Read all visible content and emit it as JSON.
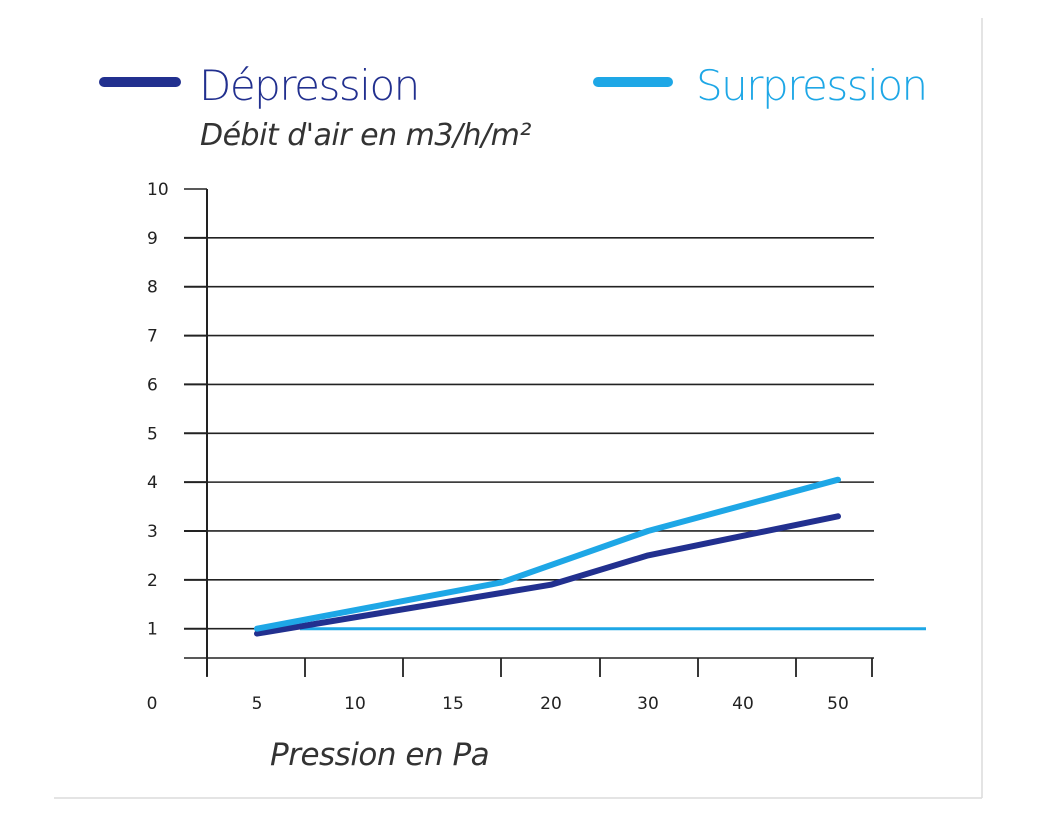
{
  "chart_data": {
    "type": "line",
    "ylabel": "Débit d'air en m3/h/m²",
    "xlabel": "Pression en Pa",
    "categories": [
      "5",
      "10",
      "15",
      "20",
      "30",
      "40",
      "50"
    ],
    "x_tick_labels": [
      "0",
      "5",
      "10",
      "15",
      "20",
      "30",
      "40",
      "50"
    ],
    "y_ticks": [
      1,
      2,
      3,
      4,
      5,
      6,
      7,
      8,
      9,
      10
    ],
    "y_tick_labels": [
      "1",
      "2",
      "3",
      "4",
      "5",
      "6",
      "7",
      "8",
      "9",
      "10"
    ],
    "ylim": [
      0.4,
      10
    ],
    "grid": true,
    "legend_position": "top",
    "series": [
      {
        "name": "Dépression",
        "color": "#22308f",
        "points": [
          [
            5,
            0.9
          ],
          [
            20,
            1.9
          ],
          [
            30,
            2.5
          ],
          [
            50,
            3.3
          ]
        ]
      },
      {
        "name": "Surpression",
        "color": "#1ea7e6",
        "points": [
          [
            5,
            1.0
          ],
          [
            17.5,
            1.95
          ],
          [
            30,
            3.0
          ],
          [
            50,
            4.05
          ]
        ]
      }
    ],
    "reference_line": {
      "y": 1,
      "color": "#1ea7e6"
    }
  }
}
